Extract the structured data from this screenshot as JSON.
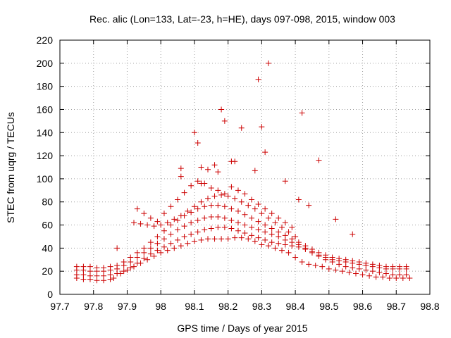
{
  "chart_data": {
    "type": "scatter",
    "title": "Rec. alic (Lon=133, Lat=-23, h=HE), days 097-098, 2015, window 003",
    "xlabel": "GPS time / Days of year 2015",
    "ylabel": "STEC from uqrg / TECUs",
    "xlim": [
      97.7,
      98.8
    ],
    "ylim": [
      0,
      220
    ],
    "xticks": [
      "97.7",
      "97.8",
      "97.9",
      "98",
      "98.1",
      "98.2",
      "98.3",
      "98.4",
      "98.5",
      "98.6",
      "98.7",
      "98.8"
    ],
    "yticks": [
      "0",
      "20",
      "40",
      "60",
      "80",
      "100",
      "120",
      "140",
      "160",
      "180",
      "200",
      "220"
    ],
    "grid": true,
    "marker": "plus",
    "color": "#cc0000",
    "series": [
      {
        "x": [
          97.75,
          97.77,
          97.79,
          97.81,
          97.83,
          97.85,
          97.86,
          97.88,
          97.9,
          97.92,
          97.94,
          97.96,
          97.98,
          98.0,
          98.02,
          98.04,
          98.06,
          98.08,
          98.1,
          98.12,
          98.14,
          98.16,
          98.18,
          98.2,
          98.22,
          98.24,
          98.26,
          98.28,
          98.3,
          98.32,
          98.34,
          98.36,
          98.38,
          98.4,
          98.42,
          98.44,
          98.46,
          98.48,
          98.5,
          98.52,
          98.54,
          98.56,
          98.58,
          98.6,
          98.62,
          98.64,
          98.66,
          98.68,
          98.7,
          98.72,
          98.74
        ],
        "y": [
          14,
          13,
          13,
          12,
          12,
          13,
          14,
          18,
          21,
          24,
          27,
          30,
          33,
          36,
          38,
          40,
          42,
          44,
          46,
          47,
          48,
          48,
          48,
          48,
          49,
          49,
          48,
          46,
          43,
          42,
          40,
          38,
          36,
          32,
          28,
          26,
          25,
          24,
          22,
          21,
          20,
          19,
          18,
          17,
          16,
          15,
          15,
          14,
          14,
          14,
          14
        ]
      },
      {
        "x": [
          97.75,
          97.77,
          97.79,
          97.81,
          97.83,
          97.85,
          97.87,
          97.89,
          97.91,
          97.93,
          97.95,
          97.97,
          97.99,
          98.01,
          98.03,
          98.05,
          98.07,
          98.09,
          98.11,
          98.13,
          98.15,
          98.17,
          98.19,
          98.21,
          98.23,
          98.25,
          98.27,
          98.29,
          98.31,
          98.33,
          98.35,
          98.37,
          98.39,
          98.41,
          98.43,
          98.45,
          98.47,
          98.49,
          98.51,
          98.53,
          98.55,
          98.57,
          98.59,
          98.61,
          98.63,
          98.65,
          98.67,
          98.69,
          98.71,
          98.73
        ],
        "y": [
          17,
          17,
          16,
          16,
          16,
          17,
          18,
          20,
          23,
          27,
          31,
          35,
          38,
          41,
          44,
          47,
          50,
          52,
          54,
          56,
          57,
          58,
          58,
          57,
          55,
          53,
          51,
          49,
          47,
          45,
          44,
          43,
          42,
          41,
          39,
          36,
          33,
          30,
          28,
          26,
          24,
          23,
          22,
          21,
          20,
          19,
          18,
          17,
          17,
          17
        ]
      },
      {
        "x": [
          97.75,
          97.77,
          97.79,
          97.81,
          97.83,
          97.85,
          97.87,
          97.89,
          97.91,
          97.93,
          97.95,
          97.97,
          97.99,
          98.01,
          98.03,
          98.05,
          98.07,
          98.09,
          98.11,
          98.13,
          98.15,
          98.17,
          98.19,
          98.21,
          98.23,
          98.25,
          98.27,
          98.29,
          98.31,
          98.33,
          98.35,
          98.37,
          98.39,
          98.41,
          98.43,
          98.45,
          98.47,
          98.49,
          98.51,
          98.53,
          98.55,
          98.57,
          98.59,
          98.61,
          98.63,
          98.65,
          98.67,
          98.69,
          98.71,
          98.73
        ],
        "y": [
          21,
          21,
          20,
          20,
          20,
          21,
          22,
          25,
          28,
          32,
          36,
          40,
          44,
          48,
          52,
          56,
          59,
          62,
          64,
          66,
          67,
          67,
          66,
          64,
          62,
          60,
          58,
          56,
          54,
          52,
          50,
          47,
          45,
          43,
          40,
          37,
          34,
          32,
          30,
          29,
          28,
          27,
          26,
          25,
          24,
          23,
          22,
          22,
          22,
          22
        ]
      },
      {
        "x": [
          97.75,
          97.77,
          97.79,
          97.81,
          97.83,
          97.85,
          97.87,
          97.89,
          97.91,
          97.93,
          97.95,
          97.97,
          97.99,
          98.01,
          98.03,
          98.05,
          98.07,
          98.09,
          98.11,
          98.13,
          98.15,
          98.17,
          98.19,
          98.21,
          98.23,
          98.25,
          98.27,
          98.29,
          98.31,
          98.33,
          98.35,
          98.37,
          98.39,
          98.41,
          98.43,
          98.45,
          98.47,
          98.49,
          98.51,
          98.53,
          98.55,
          98.57,
          98.59,
          98.61,
          98.63,
          98.65,
          98.67,
          98.69,
          98.71,
          98.73
        ],
        "y": [
          24,
          24,
          24,
          23,
          23,
          24,
          25,
          28,
          32,
          36,
          40,
          45,
          50,
          55,
          60,
          64,
          68,
          71,
          74,
          76,
          77,
          77,
          76,
          74,
          72,
          69,
          66,
          63,
          60,
          57,
          54,
          51,
          48,
          45,
          42,
          39,
          36,
          34,
          32,
          31,
          30,
          29,
          28,
          27,
          26,
          25,
          24,
          24,
          24,
          24
        ]
      },
      {
        "x": [
          97.92,
          97.94,
          97.96,
          97.98,
          98.0,
          98.02,
          98.04,
          98.06,
          98.08,
          98.1,
          98.12,
          98.14,
          98.16,
          98.18,
          98.2,
          98.22,
          98.24,
          98.26,
          98.28,
          98.3,
          98.32,
          98.34,
          98.36,
          98.38,
          98.4
        ],
        "y": [
          62,
          61,
          60,
          59,
          60,
          62,
          65,
          68,
          72,
          76,
          80,
          83,
          85,
          86,
          85,
          83,
          80,
          77,
          74,
          70,
          66,
          62,
          58,
          54,
          50
        ]
      },
      {
        "x": [
          97.93,
          97.95,
          97.97,
          97.99,
          98.01,
          98.03,
          98.05,
          98.07,
          98.09,
          98.11,
          98.13,
          98.15,
          98.17,
          98.19,
          98.21,
          98.23,
          98.25,
          98.27,
          98.29,
          98.31,
          98.33,
          98.35,
          98.37,
          98.39
        ],
        "y": [
          74,
          70,
          66,
          63,
          70,
          76,
          82,
          88,
          94,
          98,
          96,
          92,
          90,
          87,
          93,
          90,
          87,
          82,
          78,
          74,
          70,
          66,
          62,
          58
        ]
      },
      {
        "x": [
          97.87,
          98.06,
          98.06,
          98.1,
          98.11,
          98.12,
          98.12,
          98.14,
          98.16,
          98.17,
          98.18,
          98.19,
          98.21,
          98.22,
          98.24,
          98.28,
          98.29,
          98.3,
          98.31,
          98.32,
          98.37,
          98.41,
          98.42,
          98.44,
          98.47,
          98.52,
          98.57
        ],
        "y": [
          40,
          102,
          109,
          140,
          131,
          110,
          96,
          108,
          112,
          106,
          160,
          150,
          115,
          115,
          144,
          107,
          186,
          145,
          123,
          200,
          98,
          82,
          157,
          77,
          116,
          65,
          52
        ]
      }
    ]
  }
}
